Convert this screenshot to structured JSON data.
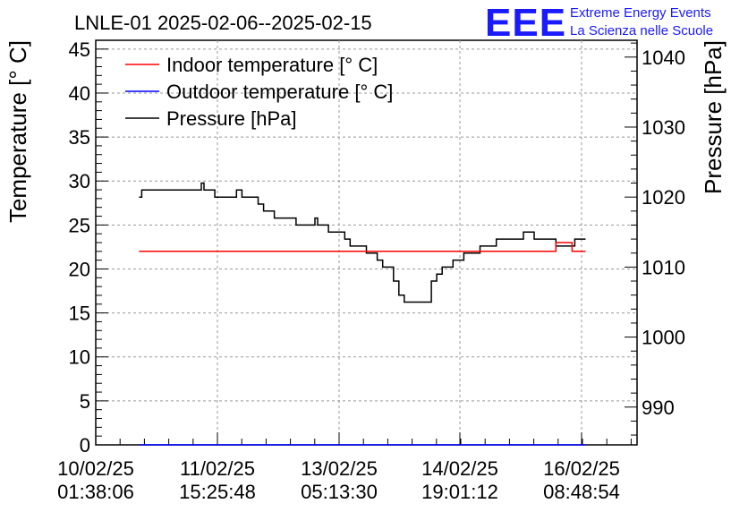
{
  "chart_data": {
    "type": "line",
    "title": "LNLE-01 2025-02-06--2025-02-15",
    "ylabel": "Temperature [° C]",
    "y2label": "Pressure [hPa]",
    "xlabel": "",
    "ylim": [
      0,
      46
    ],
    "y2lim": [
      984.6,
      1042.4
    ],
    "y_ticks": [
      0,
      5,
      10,
      15,
      20,
      25,
      30,
      35,
      40,
      45
    ],
    "y2_ticks": [
      990,
      1000,
      1010,
      1020,
      1030,
      1040
    ],
    "x_tick_labels": [
      {
        "date": "10/02/25",
        "time": "01:38:06"
      },
      {
        "date": "11/02/25",
        "time": "15:25:48"
      },
      {
        "date": "13/02/25",
        "time": "05:13:30"
      },
      {
        "date": "14/02/25",
        "time": "19:01:12"
      },
      {
        "date": "16/02/25",
        "time": "08:48:54"
      }
    ],
    "grid": true,
    "legend_position": "top-left",
    "series": [
      {
        "name": "Indoor temperature [° C]",
        "color": "#ff0000",
        "axis": "left",
        "x": [
          0.08,
          0.15,
          0.3,
          0.45,
          0.6,
          0.7,
          0.8,
          0.84,
          0.85,
          0.87,
          0.88,
          0.905
        ],
        "y": [
          22.0,
          22.0,
          22.0,
          22.0,
          22.0,
          22.0,
          22.0,
          22.0,
          23.0,
          23.0,
          22.0,
          22.0
        ]
      },
      {
        "name": "Outdoor temperature [° C]",
        "color": "#0000ff",
        "axis": "left",
        "x": [
          0.08,
          0.905
        ],
        "y": [
          0.0,
          0.0
        ]
      },
      {
        "name": "Pressure [hPa]",
        "color": "#000000",
        "axis": "right",
        "x": [
          0.08,
          0.085,
          0.1,
          0.19,
          0.195,
          0.2,
          0.215,
          0.22,
          0.25,
          0.26,
          0.27,
          0.275,
          0.29,
          0.3,
          0.31,
          0.32,
          0.33,
          0.36,
          0.37,
          0.38,
          0.39,
          0.4,
          0.405,
          0.41,
          0.42,
          0.43,
          0.45,
          0.46,
          0.47,
          0.48,
          0.5,
          0.52,
          0.53,
          0.54,
          0.55,
          0.56,
          0.57,
          0.575,
          0.58,
          0.6,
          0.62,
          0.63,
          0.64,
          0.65,
          0.66,
          0.665,
          0.67,
          0.68,
          0.69,
          0.7,
          0.71,
          0.72,
          0.73,
          0.74,
          0.75,
          0.77,
          0.79,
          0.8,
          0.81,
          0.82,
          0.83,
          0.84,
          0.85,
          0.86,
          0.87,
          0.88,
          0.885,
          0.89,
          0.905
        ],
        "y": [
          1020.0,
          1021.0,
          1021.0,
          1021.0,
          1022.0,
          1021.0,
          1021.0,
          1020.0,
          1020.0,
          1021.0,
          1020.0,
          1020.0,
          1020.0,
          1019.0,
          1018.0,
          1018.0,
          1017.0,
          1017.0,
          1016.0,
          1016.0,
          1016.0,
          1016.0,
          1017.0,
          1016.0,
          1016.0,
          1015.0,
          1015.0,
          1014.0,
          1013.0,
          1013.0,
          1012.0,
          1011.0,
          1010.0,
          1010.0,
          1008.0,
          1006.0,
          1005.0,
          1005.0,
          1005.0,
          1005.0,
          1008.0,
          1009.0,
          1010.0,
          1010.0,
          1011.0,
          1011.0,
          1011.0,
          1012.0,
          1012.0,
          1012.0,
          1013.0,
          1013.0,
          1013.0,
          1014.0,
          1014.0,
          1014.0,
          1015.0,
          1015.0,
          1014.0,
          1014.0,
          1014.0,
          1014.0,
          1013.0,
          1013.0,
          1013.0,
          1013.0,
          1014.0,
          1014.0,
          1014.0
        ]
      }
    ]
  },
  "logo": {
    "mark": "EEE",
    "line1": "Extreme Energy Events",
    "line2": "La Scienza nelle Scuole"
  }
}
